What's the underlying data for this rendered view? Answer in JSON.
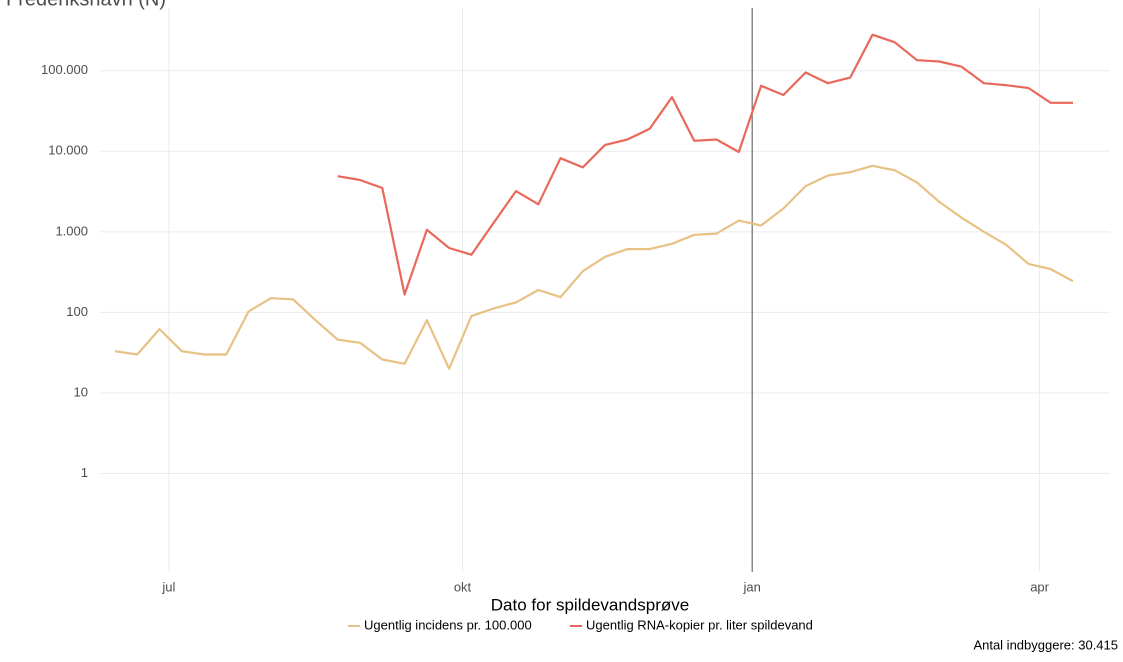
{
  "chart_data": {
    "type": "line",
    "title": "Frederikshavn (N)",
    "x_label": "Dato for spildevandsprøve",
    "note": "Antal indbyggere: 30.415",
    "categories": [
      null,
      null,
      null,
      null,
      null,
      null,
      null,
      null,
      null,
      null,
      null,
      null,
      null,
      null,
      null,
      null,
      null,
      null,
      null,
      null,
      null,
      null,
      null,
      null,
      null,
      null,
      null,
      null,
      null,
      null,
      null,
      null,
      null,
      null,
      null,
      null,
      null,
      null,
      null,
      null,
      null,
      null,
      null,
      null
    ],
    "xlim": [
      -0.67,
      44.66
    ],
    "xticks": [
      {
        "value": 2.42,
        "label": "jul"
      },
      {
        "value": 15.6,
        "label": "okt"
      },
      {
        "value": 28.6,
        "label": "jan"
      },
      {
        "value": 41.5,
        "label": "apr"
      }
    ],
    "ylog": true,
    "ylim": [
      0.06,
      600000
    ],
    "yticks": [
      1,
      10,
      100,
      {
        "value": 1000,
        "label": "1.000"
      },
      {
        "value": 10000,
        "label": "10.000"
      },
      {
        "value": 100000,
        "label": "100.000"
      }
    ],
    "grid": true,
    "series": [
      {
        "name": "Ugentlig incidens pr. 100.000",
        "color": "#e8c185",
        "values": [
          33,
          30,
          62,
          33,
          30,
          30,
          103,
          150,
          145,
          80,
          46,
          42,
          26,
          23,
          80,
          20,
          90,
          112,
          133,
          190,
          155,
          325,
          490,
          610,
          610,
          710,
          920,
          950,
          1380,
          1200,
          1950,
          3700,
          5000,
          5500,
          6600,
          5800,
          4100,
          2350,
          1500,
          1000,
          690,
          400,
          345,
          245
        ]
      },
      {
        "name": "Ugentlig RNA-kopier pr. liter spildevand",
        "color": "#e8685a",
        "values": [
          null,
          null,
          null,
          null,
          null,
          null,
          null,
          null,
          null,
          null,
          4900,
          4400,
          3500,
          167,
          1060,
          630,
          520,
          1300,
          3200,
          2200,
          8200,
          6300,
          12000,
          14000,
          19000,
          47000,
          13500,
          14000,
          9800,
          65000,
          50000,
          95000,
          70000,
          82000,
          280000,
          225000,
          135000,
          130000,
          112000,
          70000,
          66000,
          61000,
          40000,
          40000
        ]
      }
    ]
  }
}
